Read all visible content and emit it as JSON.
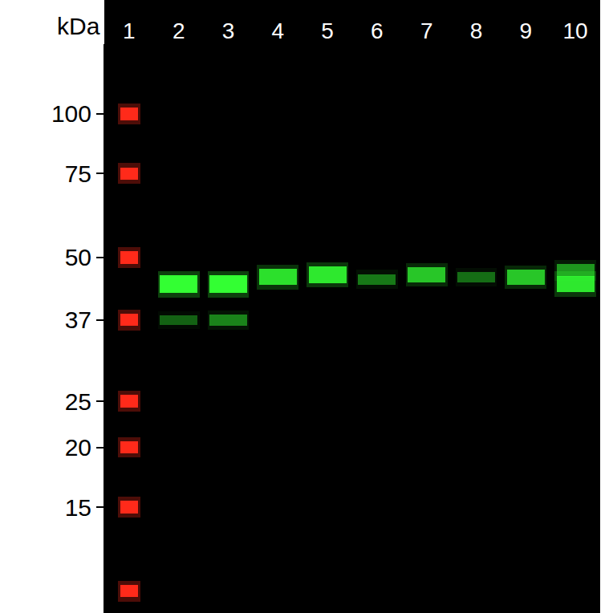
{
  "chart_data": {
    "type": "western_blot",
    "ylabel": "kDa",
    "categories": [
      "1",
      "2",
      "3",
      "4",
      "5",
      "6",
      "7",
      "8",
      "9",
      "10"
    ],
    "ylim": [
      9,
      140
    ],
    "yticks": [
      15,
      20,
      25,
      37,
      50,
      75,
      100
    ],
    "log": "y",
    "grid": false,
    "ladder": {
      "lane": "1",
      "color": "#ff2a1a",
      "values": [
        100,
        75,
        50,
        37,
        25,
        20,
        15,
        10
      ]
    },
    "bands": {
      "color": "#33ff33",
      "lanes": [
        "2",
        "2",
        "3",
        "3",
        "4",
        "5",
        "6",
        "7",
        "8",
        "9",
        "10",
        "10"
      ],
      "values": [
        44,
        37,
        44,
        37,
        45.5,
        46,
        45,
        46,
        45.5,
        45.5,
        47,
        44
      ],
      "intensity": [
        1,
        0.15,
        1,
        0.3,
        0.8,
        0.85,
        0.25,
        0.65,
        0.2,
        0.65,
        0.4,
        0.85
      ]
    }
  }
}
